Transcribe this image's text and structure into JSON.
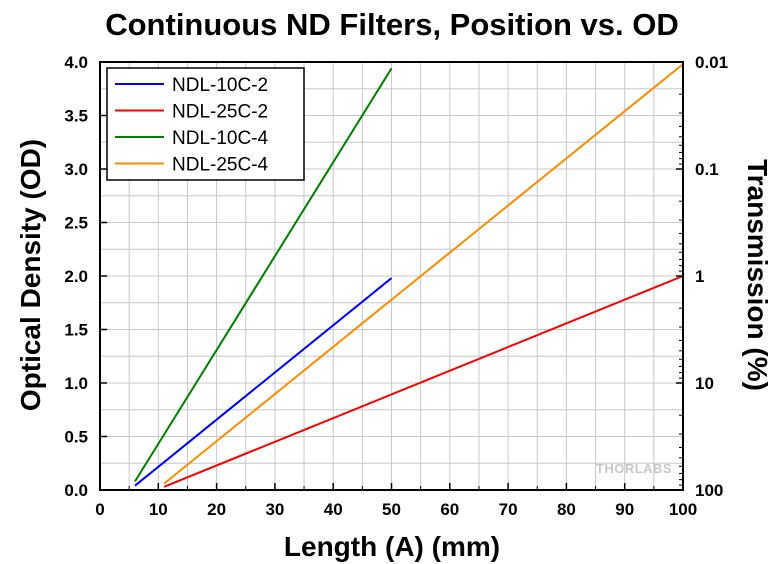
{
  "chart_data": {
    "type": "line",
    "title": "Continuous ND Filters, Position vs. OD",
    "xlabel": "Length (A) (mm)",
    "ylabel": "Optical Density (OD)",
    "y2label": "Transmission (%)",
    "xlim": [
      0,
      100
    ],
    "ylim": [
      0,
      4
    ],
    "x_ticks": [
      "0",
      "10",
      "20",
      "30",
      "40",
      "50",
      "60",
      "70",
      "80",
      "90",
      "100"
    ],
    "y_ticks": [
      "0.0",
      "0.5",
      "1.0",
      "1.5",
      "2.0",
      "2.5",
      "3.0",
      "3.5",
      "4.0"
    ],
    "y2_ticks": [
      {
        "label": "0.01",
        "od": 4
      },
      {
        "label": "0.1",
        "od": 3
      },
      {
        "label": "1",
        "od": 2
      },
      {
        "label": "10",
        "od": 1
      },
      {
        "label": "100",
        "od": 0
      }
    ],
    "grid": true,
    "legend_position": "top-left",
    "series": [
      {
        "name": "NDL-10C-2",
        "color": "#0000ff",
        "x": [
          6,
          50
        ],
        "y": [
          0.04,
          1.98
        ]
      },
      {
        "name": "NDL-25C-2",
        "color": "#ff0000",
        "x": [
          11,
          100
        ],
        "y": [
          0.03,
          2.0
        ]
      },
      {
        "name": "NDL-10C-4",
        "color": "#008000",
        "x": [
          6,
          50
        ],
        "y": [
          0.08,
          3.94
        ]
      },
      {
        "name": "NDL-25C-4",
        "color": "#ff8c00",
        "x": [
          11,
          100
        ],
        "y": [
          0.06,
          3.98
        ]
      }
    ]
  },
  "watermark": "THORLABS"
}
